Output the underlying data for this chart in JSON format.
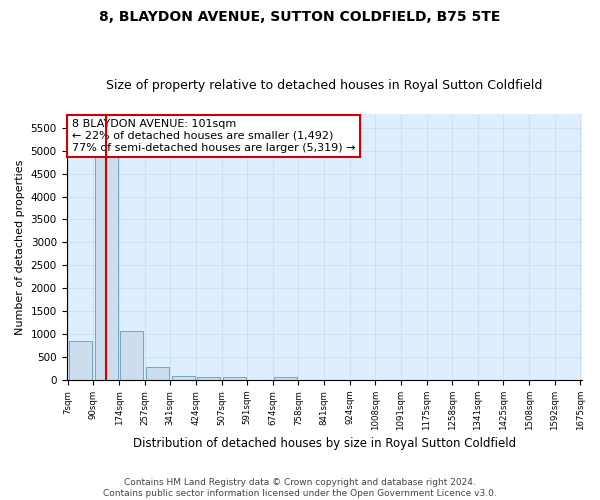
{
  "title": "8, BLAYDON AVENUE, SUTTON COLDFIELD, B75 5TE",
  "subtitle": "Size of property relative to detached houses in Royal Sutton Coldfield",
  "xlabel": "Distribution of detached houses by size in Royal Sutton Coldfield",
  "ylabel": "Number of detached properties",
  "footer_line1": "Contains HM Land Registry data © Crown copyright and database right 2024.",
  "footer_line2": "Contains public sector information licensed under the Open Government Licence v3.0.",
  "annotation_line1": "8 BLAYDON AVENUE: 101sqm",
  "annotation_line2": "← 22% of detached houses are smaller (1,492)",
  "annotation_line3": "77% of semi-detached houses are larger (5,319) →",
  "bar_heights": [
    850,
    5450,
    1060,
    280,
    90,
    75,
    70,
    0,
    60,
    0,
    0,
    0,
    0,
    0,
    0,
    0,
    0,
    0,
    0,
    0
  ],
  "bar_color": "#ccdded",
  "bar_edge_color": "#6699bb",
  "red_line_color": "#cc0000",
  "red_line_bar_index": 1,
  "grid_color": "#c8d8e8",
  "ax_bg_color": "#ddeeff",
  "background_color": "#ffffff",
  "ylim": [
    0,
    5800
  ],
  "yticks": [
    0,
    500,
    1000,
    1500,
    2000,
    2500,
    3000,
    3500,
    4000,
    4500,
    5000,
    5500
  ],
  "tick_labels": [
    "7sqm",
    "90sqm",
    "174sqm",
    "257sqm",
    "341sqm",
    "424sqm",
    "507sqm",
    "591sqm",
    "674sqm",
    "758sqm",
    "841sqm",
    "924sqm",
    "1008sqm",
    "1091sqm",
    "1175sqm",
    "1258sqm",
    "1341sqm",
    "1425sqm",
    "1508sqm",
    "1592sqm",
    "1675sqm"
  ],
  "title_fontsize": 10,
  "subtitle_fontsize": 9,
  "annotation_fontsize": 8,
  "ylabel_fontsize": 8,
  "xlabel_fontsize": 8.5,
  "footer_fontsize": 6.5
}
